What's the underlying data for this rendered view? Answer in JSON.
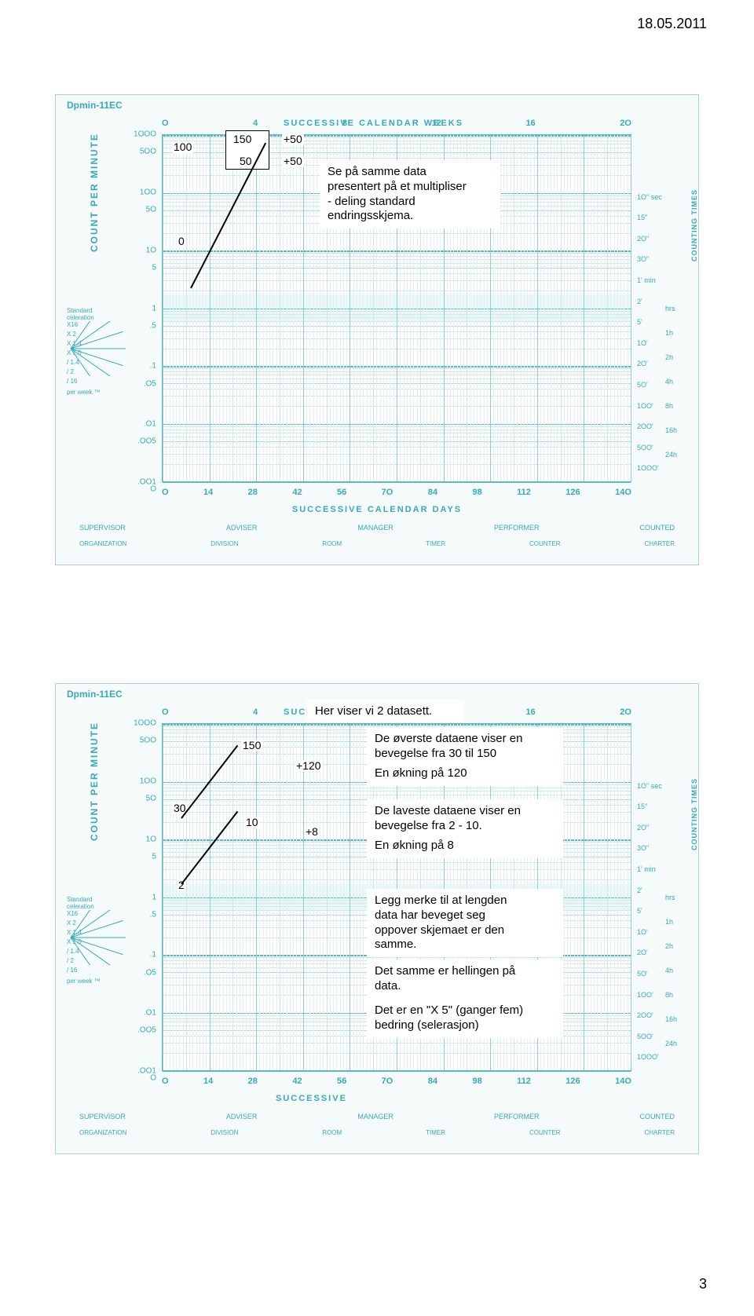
{
  "header": {
    "date": "18.05.2011",
    "page_number": "3"
  },
  "chart_common": {
    "title_code": "Dpmin-11EC",
    "top_ticks": [
      "O",
      "4",
      "8",
      "12",
      "16",
      "2O"
    ],
    "top_words": "SUCCESSIVE       CALENDAR       WEEKS",
    "y_major_labels": [
      "1OOO",
      "5OO",
      "1OO",
      "5O",
      "1O",
      "5",
      "1",
      ".5",
      ".1",
      ".O5",
      ".O1",
      ".OO5",
      ".OO1",
      "O"
    ],
    "y_extra_labels": [
      ".1",
      ".O5"
    ],
    "y_title": "COUNT PER MINUTE",
    "right_title": "COUNTING TIMES",
    "right_labels_upper": [
      "1O\" sec",
      "15\"",
      "2O\"",
      "3O\"",
      "1' min",
      "2'",
      "5'",
      "1O'",
      "2O'",
      "5O'",
      "1OO'",
      "2OO'",
      "5OO'",
      "1OOO'"
    ],
    "right_labels_hrs": [
      "hrs",
      "1h",
      "2h",
      "4h",
      "8h",
      "16h",
      "24h"
    ],
    "x_ticks": [
      "O",
      "14",
      "28",
      "42",
      "56",
      "7O",
      "84",
      "98",
      "112",
      "126",
      "14O"
    ],
    "x_title": "SUCCESSIVE CALENDAR DAYS",
    "footer1": [
      "SUPERVISOR",
      "ADVISER",
      "MANAGER",
      "PERFORMER",
      "COUNTED"
    ],
    "footer2": [
      "ORGANIZATION",
      "DIVISION",
      "ROOM",
      "TIMER",
      "COUNTER",
      "CHARTER"
    ],
    "celeration_header": "Standard\nceleration",
    "celeration_labels": [
      "X16",
      "X 2",
      "X 1.4",
      "X 1.0",
      "/ 1.4",
      "/ 2",
      "/ 16"
    ],
    "celeration_footer": "per week ™",
    "colors": {
      "background": "#f5fbfa",
      "plot_bg": "#ffffff",
      "axis": "#5cb8c4",
      "grid_major": "#8cd0d6",
      "grid_minor": "#cde8e5",
      "text_axis": "#3aa8b8",
      "annot_text": "#000000"
    }
  },
  "chart1": {
    "annotations": {
      "val_100": "100",
      "val_150": "150",
      "val_50": "50",
      "plus50_a": "+50",
      "plus50_b": "+50",
      "val_0": "0"
    },
    "textbox": "Se på samme data\npresentert på et multipliser\n- deling standard\nendringsskjema.",
    "line": {
      "x1_pct": 6,
      "y1_pct": 44,
      "x2_pct": 22,
      "y2_pct": 2,
      "width": 2
    }
  },
  "chart2": {
    "header_textbox": "Her viser vi 2 datasett.",
    "annotations": {
      "val_150": "150",
      "val_30": "30",
      "val_10": "10",
      "val_2": "2",
      "plus120": "+120",
      "plus8": "+8"
    },
    "textboxes": {
      "t1": "De øverste dataene viser en\nbevegelse fra 30 til 150",
      "t2": "En økning på 120",
      "t3": "De laveste dataene viser en\nbevegelse fra 2 - 10.",
      "t4": "En økning på 8",
      "t5": "Legg merke til at lengden\ndata har beveget seg\noppover skjemaet er den\nsamme.",
      "t6": "Det samme er hellingen på\ndata.",
      "t7": "Det er en \"X 5\" (ganger fem)\nbedring (selerasjon)"
    },
    "line1": {
      "x1_pct": 4,
      "y1_pct": 27,
      "x2_pct": 16,
      "y2_pct": 6,
      "width": 2
    },
    "line2": {
      "x1_pct": 4,
      "y1_pct": 46,
      "x2_pct": 16,
      "y2_pct": 25,
      "width": 2
    },
    "x_ticks_visible": [
      "O",
      "14",
      "28",
      "42",
      "56"
    ],
    "x_title_short": "SUCCESSIVE"
  }
}
